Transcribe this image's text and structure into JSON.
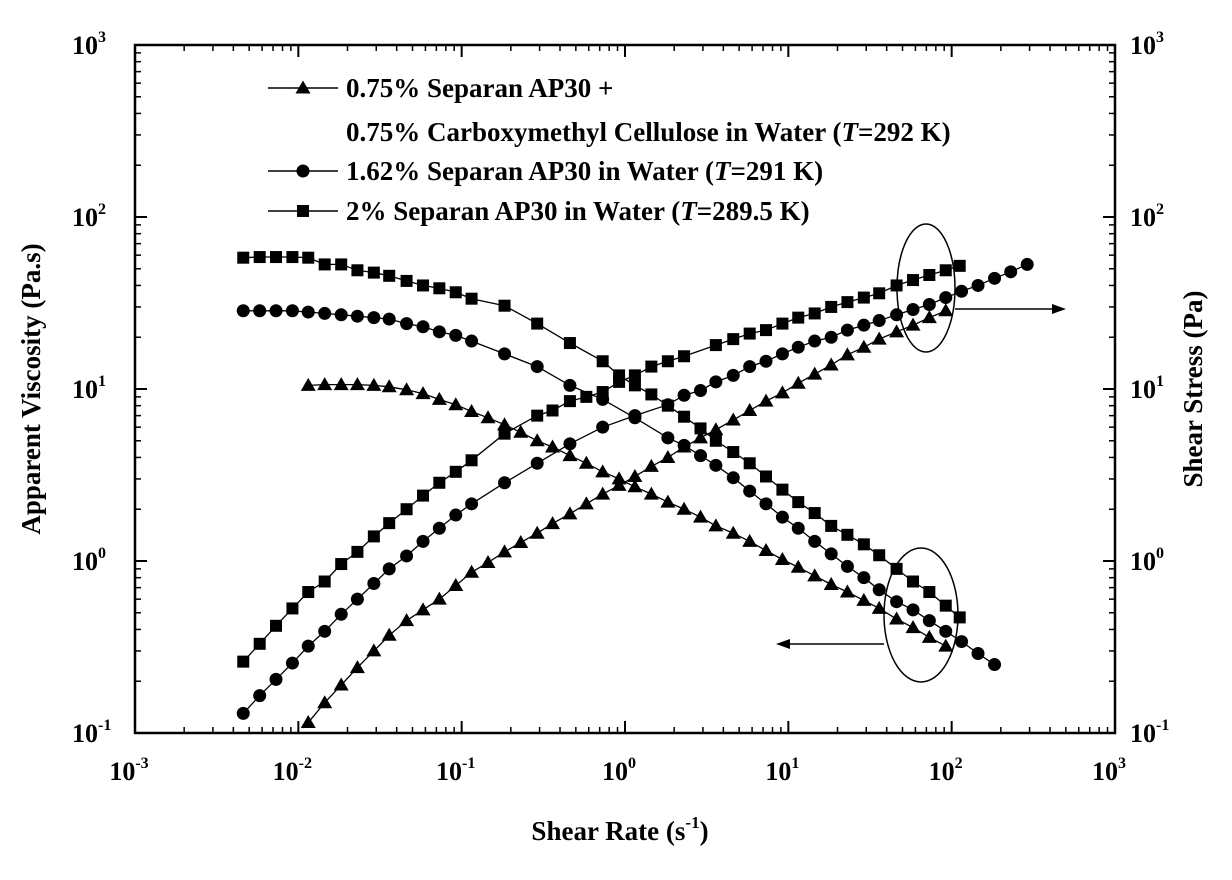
{
  "chart_data": {
    "type": "scatter",
    "xscale": "log",
    "yscale": "log",
    "xlabel": "Shear Rate (s",
    "xlabel_sup": "-1",
    "xlabel_tail": ")",
    "ylabel_left": "Apparent Viscosity (Pa.s)",
    "ylabel_right": "Shear Stress (Pa)",
    "xlim": [
      0.001,
      1000
    ],
    "ylim": [
      0.1,
      1000
    ],
    "x_ticks": [
      {
        "value": 0.001,
        "base": "10",
        "exp": "-3"
      },
      {
        "value": 0.01,
        "base": "10",
        "exp": "-2"
      },
      {
        "value": 0.1,
        "base": "10",
        "exp": "-1"
      },
      {
        "value": 1,
        "base": "10",
        "exp": "0"
      },
      {
        "value": 10,
        "base": "10",
        "exp": "1"
      },
      {
        "value": 100,
        "base": "10",
        "exp": "2"
      },
      {
        "value": 1000,
        "base": "10",
        "exp": "3"
      }
    ],
    "y_ticks": [
      {
        "value": 0.1,
        "base": "10",
        "exp": "-1"
      },
      {
        "value": 1,
        "base": "10",
        "exp": "0"
      },
      {
        "value": 10,
        "base": "10",
        "exp": "1"
      },
      {
        "value": 100,
        "base": "10",
        "exp": "2"
      },
      {
        "value": 1000,
        "base": "10",
        "exp": "3"
      }
    ],
    "legend": [
      {
        "marker": "triangle",
        "lines": [
          "0.75% Separan AP30 +",
          "0.75% Carboxymethyl Cellulose in Water (T=292 K)"
        ]
      },
      {
        "marker": "circle",
        "lines": [
          "1.62% Separan AP30 in Water (T=291 K)"
        ]
      },
      {
        "marker": "square",
        "lines": [
          "2% Separan AP30 in Water (T=289.5 K)"
        ]
      }
    ],
    "series": [
      {
        "name": "2% Separan AP30 viscosity",
        "marker": "square",
        "axis": "left",
        "x": [
          0.0046,
          0.0058,
          0.0073,
          0.0092,
          0.0115,
          0.0145,
          0.0183,
          0.023,
          0.029,
          0.036,
          0.046,
          0.058,
          0.073,
          0.092,
          0.115,
          0.183,
          0.29,
          0.46,
          0.73,
          0.92,
          1.15,
          1.45,
          1.83,
          2.3,
          2.9,
          3.6,
          4.6,
          5.8,
          7.3,
          9.2,
          11.5,
          14.5,
          18.3,
          23,
          29,
          36,
          46,
          58,
          73,
          92,
          112
        ],
        "values": [
          58,
          58.5,
          58.5,
          58.5,
          58,
          53,
          53,
          49,
          47.5,
          45.5,
          42.5,
          40,
          38.5,
          36.5,
          33.5,
          30.5,
          24,
          18.5,
          14.5,
          12,
          10.5,
          9.3,
          8.0,
          6.9,
          5.9,
          5.0,
          4.3,
          3.7,
          3.1,
          2.6,
          2.2,
          1.9,
          1.6,
          1.42,
          1.25,
          1.08,
          0.9,
          0.76,
          0.66,
          0.55,
          0.47
        ]
      },
      {
        "name": "2% Separan AP30 shear stress",
        "marker": "square",
        "axis": "right",
        "x": [
          0.0046,
          0.0058,
          0.0073,
          0.0092,
          0.0115,
          0.0145,
          0.0183,
          0.023,
          0.029,
          0.036,
          0.046,
          0.058,
          0.073,
          0.092,
          0.115,
          0.183,
          0.29,
          0.36,
          0.46,
          0.58,
          0.73,
          0.92,
          1.15,
          1.45,
          1.83,
          2.3,
          3.6,
          4.6,
          5.8,
          7.3,
          9.2,
          11.5,
          14.5,
          18.3,
          23,
          29,
          36,
          46,
          58,
          73,
          92,
          112
        ],
        "values": [
          0.26,
          0.33,
          0.42,
          0.53,
          0.66,
          0.76,
          0.96,
          1.13,
          1.39,
          1.66,
          2.0,
          2.4,
          2.85,
          3.3,
          3.85,
          5.5,
          7.0,
          7.5,
          8.5,
          9.0,
          9.6,
          11.0,
          12.0,
          13.5,
          14.5,
          15.5,
          18.0,
          19.5,
          21.0,
          22.0,
          24.0,
          26.0,
          27.5,
          30.0,
          32.0,
          34.0,
          36.0,
          40.0,
          43.0,
          46.0,
          49.0,
          52.0
        ]
      },
      {
        "name": "1.62% Separan AP30 viscosity",
        "marker": "circle",
        "axis": "left",
        "x": [
          0.0046,
          0.0058,
          0.0073,
          0.0092,
          0.0115,
          0.0145,
          0.0183,
          0.023,
          0.029,
          0.036,
          0.046,
          0.058,
          0.073,
          0.092,
          0.115,
          0.183,
          0.29,
          0.46,
          0.73,
          1.15,
          1.83,
          2.3,
          2.9,
          3.6,
          4.6,
          5.8,
          7.3,
          9.2,
          11.5,
          14.5,
          18.3,
          23,
          29,
          36,
          46,
          58,
          73,
          92,
          115,
          145,
          183
        ],
        "values": [
          28.5,
          28.5,
          28.5,
          28.5,
          28,
          27.5,
          27,
          26.5,
          26,
          25.5,
          24,
          23,
          21.5,
          20.5,
          19,
          16,
          13.5,
          10.5,
          8.7,
          6.8,
          5.2,
          4.7,
          4.1,
          3.6,
          3.05,
          2.55,
          2.15,
          1.8,
          1.55,
          1.3,
          1.1,
          0.93,
          0.8,
          0.68,
          0.58,
          0.52,
          0.45,
          0.39,
          0.34,
          0.29,
          0.25
        ]
      },
      {
        "name": "1.62% Separan AP30 shear stress",
        "marker": "circle",
        "axis": "right",
        "x": [
          0.0046,
          0.0058,
          0.0073,
          0.0092,
          0.0115,
          0.0145,
          0.0183,
          0.023,
          0.029,
          0.036,
          0.046,
          0.058,
          0.073,
          0.092,
          0.115,
          0.183,
          0.29,
          0.46,
          0.73,
          1.15,
          1.83,
          2.3,
          2.9,
          3.6,
          4.6,
          5.8,
          7.3,
          9.2,
          11.5,
          14.5,
          18.3,
          23,
          29,
          36,
          46,
          58,
          73,
          92,
          115,
          145,
          183,
          230,
          290
        ],
        "values": [
          0.13,
          0.165,
          0.205,
          0.255,
          0.32,
          0.39,
          0.49,
          0.6,
          0.74,
          0.9,
          1.07,
          1.3,
          1.55,
          1.85,
          2.15,
          2.85,
          3.7,
          4.8,
          6.0,
          7.0,
          8.1,
          9.2,
          9.8,
          11.0,
          12.0,
          13.5,
          14.5,
          16.0,
          17.5,
          19.0,
          20.0,
          22.0,
          23.5,
          25.0,
          27.0,
          29.0,
          31.0,
          34.0,
          37.0,
          40.0,
          44.0,
          48.0,
          53.0
        ]
      },
      {
        "name": "0.75% Separan AP30 + 0.75% CMC viscosity",
        "marker": "triangle",
        "axis": "left",
        "x": [
          0.0115,
          0.0145,
          0.0183,
          0.023,
          0.029,
          0.036,
          0.046,
          0.058,
          0.073,
          0.092,
          0.115,
          0.145,
          0.183,
          0.23,
          0.29,
          0.36,
          0.46,
          0.58,
          0.73,
          0.92,
          1.15,
          1.45,
          1.83,
          2.3,
          2.9,
          3.6,
          4.6,
          5.8,
          7.3,
          9.2,
          11.5,
          14.5,
          18.3,
          23,
          29,
          36,
          46,
          58,
          73,
          92
        ],
        "values": [
          10.5,
          10.6,
          10.6,
          10.6,
          10.5,
          10.3,
          9.9,
          9.4,
          8.7,
          8.1,
          7.4,
          6.8,
          6.2,
          5.6,
          5.0,
          4.6,
          4.1,
          3.7,
          3.3,
          3.0,
          2.7,
          2.45,
          2.2,
          2.0,
          1.8,
          1.6,
          1.45,
          1.3,
          1.15,
          1.02,
          0.92,
          0.82,
          0.73,
          0.66,
          0.59,
          0.53,
          0.46,
          0.41,
          0.36,
          0.32
        ]
      },
      {
        "name": "0.75% Separan AP30 + 0.75% CMC shear stress",
        "marker": "triangle",
        "axis": "right",
        "x": [
          0.0115,
          0.0145,
          0.0183,
          0.023,
          0.029,
          0.036,
          0.046,
          0.058,
          0.073,
          0.092,
          0.115,
          0.145,
          0.183,
          0.23,
          0.29,
          0.36,
          0.46,
          0.58,
          0.73,
          0.92,
          1.15,
          1.45,
          1.83,
          2.3,
          2.9,
          3.6,
          4.6,
          5.8,
          7.3,
          9.2,
          11.5,
          14.5,
          18.3,
          23,
          29,
          36,
          46,
          58,
          73,
          92
        ],
        "values": [
          0.115,
          0.15,
          0.19,
          0.24,
          0.3,
          0.37,
          0.45,
          0.52,
          0.6,
          0.72,
          0.86,
          0.98,
          1.13,
          1.28,
          1.45,
          1.65,
          1.88,
          2.15,
          2.45,
          2.75,
          3.1,
          3.55,
          4.0,
          4.6,
          5.2,
          5.8,
          6.6,
          7.5,
          8.5,
          9.5,
          10.8,
          12.2,
          13.8,
          15.8,
          17.5,
          19.5,
          21.5,
          23.5,
          26.0,
          28.5
        ]
      }
    ],
    "annotations": [
      {
        "type": "ellipse-arrow",
        "target": "shear-stress-cluster",
        "direction": "right"
      },
      {
        "type": "ellipse-arrow",
        "target": "viscosity-cluster",
        "direction": "left"
      }
    ]
  }
}
